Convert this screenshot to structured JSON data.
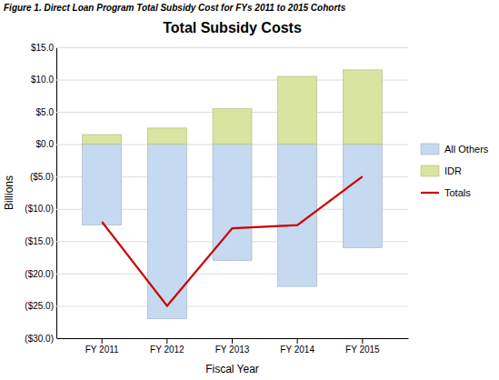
{
  "chart_data": {
    "type": "bar",
    "title": "Total Subsidy Costs",
    "subtitle": "Figure 1. Direct Loan Program Total Subsidy Cost for FYs 2011 to 2015 Cohorts",
    "xlabel": "Fiscal Year",
    "ylabel": "Billions",
    "categories": [
      "FY 2011",
      "FY 2012",
      "FY 2013",
      "FY 2014",
      "FY 2015"
    ],
    "series": [
      {
        "name": "All Others",
        "color": "#c5d9f1",
        "values": [
          -12.5,
          -27.0,
          -18.0,
          -22.0,
          -16.0
        ]
      },
      {
        "name": "IDR",
        "color": "#d8e4a0",
        "values": [
          1.5,
          2.5,
          5.5,
          10.5,
          11.5
        ]
      },
      {
        "name": "Totals",
        "type": "line",
        "color": "#cc0000",
        "values": [
          -12.0,
          -25.0,
          -13.0,
          -12.5,
          -5.0
        ]
      }
    ],
    "ylim": [
      -30.0,
      15.0
    ],
    "yticks": [
      {
        "value": 15.0,
        "label": "$15.0"
      },
      {
        "value": 10.0,
        "label": "$10.0"
      },
      {
        "value": 5.0,
        "label": "$5.0"
      },
      {
        "value": 0.0,
        "label": "$0.0"
      },
      {
        "value": -5.0,
        "label": "($5.0)"
      },
      {
        "value": -10.0,
        "label": "($10.0)"
      },
      {
        "value": -15.0,
        "label": "($15.0)"
      },
      {
        "value": -20.0,
        "label": "($20.0)"
      },
      {
        "value": -25.0,
        "label": "($25.0)"
      },
      {
        "value": -30.0,
        "label": "($30.0)"
      }
    ],
    "grid": true,
    "legend": "right"
  }
}
